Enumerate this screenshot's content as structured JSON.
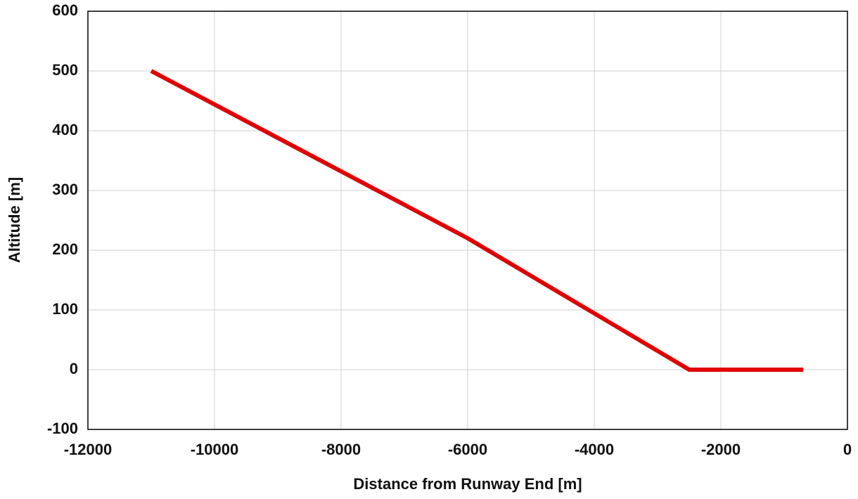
{
  "chart_data": {
    "type": "line",
    "x_label": "Distance from Runway End [m]",
    "y_label": "Altitude [m]",
    "x": [
      -11000,
      -6000,
      -2500,
      -700
    ],
    "series": [
      {
        "name": "Altitude",
        "color": "#e00000",
        "values": [
          500,
          220,
          0,
          0
        ]
      }
    ],
    "xlim": [
      -12000,
      0
    ],
    "xticks": [
      -12000,
      -10000,
      -8000,
      -6000,
      -4000,
      -2000,
      0
    ],
    "ylim": [
      -100,
      600
    ],
    "yticks": [
      -100,
      0,
      100,
      200,
      300,
      400,
      500,
      600
    ],
    "grid": true
  }
}
